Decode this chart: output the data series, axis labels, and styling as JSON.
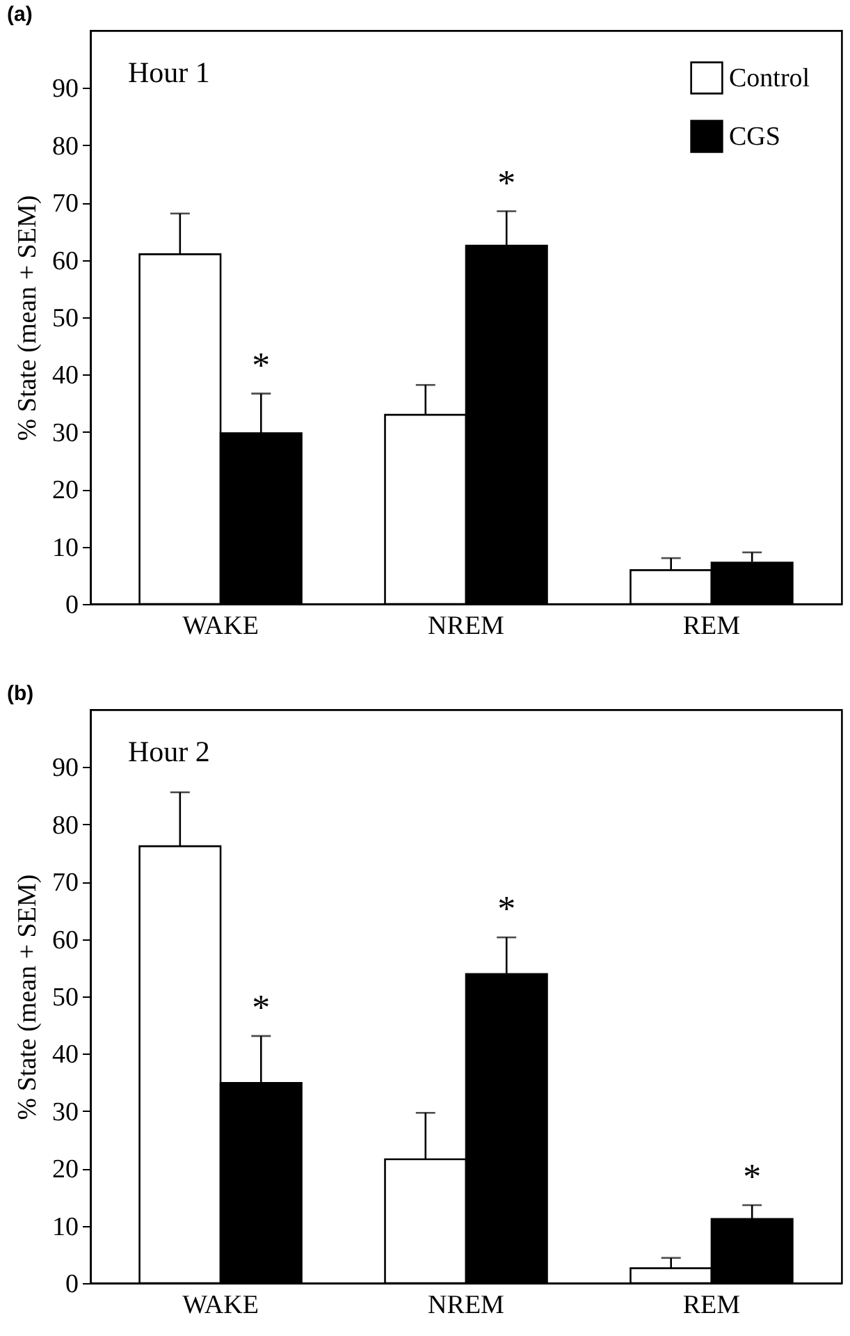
{
  "chart_data": [
    {
      "type": "bar",
      "title": "(a)",
      "subtitle": "Hour 1",
      "ylabel": "% State (mean + SEM)",
      "categories": [
        "WAKE",
        "NREM",
        "REM"
      ],
      "series": [
        {
          "name": "Control",
          "color": "#ffffff",
          "values": [
            61,
            33,
            5.9
          ],
          "errors": [
            [
              61,
              68.1
            ],
            [
              33,
              38.2
            ],
            [
              5.9,
              8
            ]
          ]
        },
        {
          "name": "CGS",
          "color": "#000000",
          "values": [
            29.8,
            62.5,
            7.2
          ],
          "errors": [
            [
              29.8,
              36.7
            ],
            [
              62.5,
              68.5
            ],
            [
              7.2,
              9
            ]
          ]
        }
      ],
      "annotations": [
        {
          "text": "*",
          "x": "WAKE",
          "y": 29.8
        },
        {
          "text": "*",
          "x": "NREM",
          "y": 62.5
        }
      ],
      "ylim": [
        0,
        100
      ],
      "yticks": [
        0,
        10,
        20,
        30,
        40,
        50,
        60,
        70,
        80,
        90
      ],
      "legend": "top right",
      "grid": false
    },
    {
      "type": "bar",
      "title": "(b)",
      "subtitle": "Hour 2",
      "ylabel": "% State (mean + SEM)",
      "categories": [
        "WAKE",
        "NREM",
        "REM"
      ],
      "series": [
        {
          "name": "Control",
          "color": "#ffffff",
          "values": [
            76.2,
            21.6,
            2.6
          ],
          "errors": [
            [
              76.2,
              85.6
            ],
            [
              21.6,
              29.7
            ],
            [
              2.6,
              4.4
            ]
          ]
        },
        {
          "name": "CGS",
          "color": "#000000",
          "values": [
            34.9,
            53.9,
            11.2
          ],
          "errors": [
            [
              34.9,
              43.1
            ],
            [
              53.9,
              60.3
            ],
            [
              11.2,
              13.6
            ]
          ]
        }
      ],
      "annotations": [
        {
          "text": "*",
          "x": "WAKE",
          "y": 34.9
        },
        {
          "text": "*",
          "x": "NREM",
          "y": 53.9
        },
        {
          "text": "*",
          "x": "REM",
          "y": 11.2
        }
      ],
      "ylim": [
        0,
        100
      ],
      "yticks": [
        0,
        10,
        20,
        30,
        40,
        50,
        60,
        70,
        80,
        90
      ],
      "grid": false
    }
  ]
}
